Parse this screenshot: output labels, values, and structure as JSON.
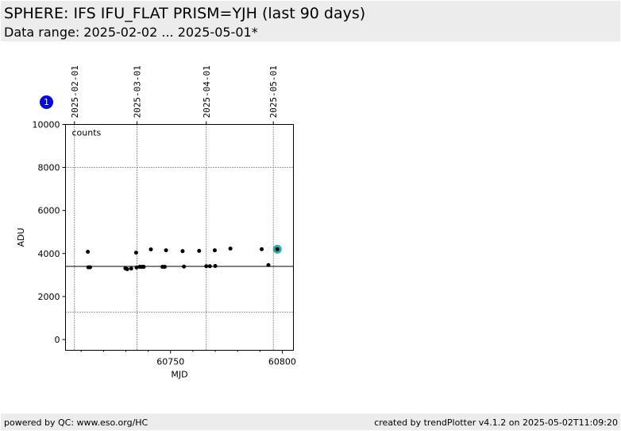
{
  "header": {
    "title": "SPHERE: IFS IFU_FLAT PRISM=YJH (last 90 days)",
    "subtitle": "Data range: 2025-02-02 ... 2025-05-01*"
  },
  "badge": {
    "label": "1"
  },
  "footer": {
    "left": "powered by QC: www.eso.org/HC",
    "right": "created by trendPlotter v4.1.2 on 2025-05-02T11:09:20"
  },
  "chart_data": {
    "type": "scatter",
    "xlabel": "MJD",
    "ylabel": "ADU",
    "annotation": "counts",
    "xlim": [
      60703,
      60805
    ],
    "ylim": [
      -500,
      10000
    ],
    "xticks": [
      60750,
      60800
    ],
    "yticks": [
      0,
      2000,
      4000,
      6000,
      8000,
      10000
    ],
    "date_ticks": [
      {
        "label": "2025-02-01",
        "mjd": 60707
      },
      {
        "label": "2025-03-01",
        "mjd": 60735
      },
      {
        "label": "2025-04-01",
        "mjd": 60766
      },
      {
        "label": "2025-05-01",
        "mjd": 60796
      }
    ],
    "reference_lines": [
      3400,
      1270
    ],
    "grid": true,
    "points": [
      {
        "x": 60713.0,
        "y": 4080
      },
      {
        "x": 60713.2,
        "y": 3360
      },
      {
        "x": 60714.0,
        "y": 3360
      },
      {
        "x": 60729.8,
        "y": 3310
      },
      {
        "x": 60730.6,
        "y": 3270
      },
      {
        "x": 60732.4,
        "y": 3300
      },
      {
        "x": 60734.6,
        "y": 4040
      },
      {
        "x": 60734.8,
        "y": 3350
      },
      {
        "x": 60736.2,
        "y": 3380
      },
      {
        "x": 60737.2,
        "y": 3380
      },
      {
        "x": 60738.0,
        "y": 3380
      },
      {
        "x": 60741.2,
        "y": 4190
      },
      {
        "x": 60746.4,
        "y": 3380
      },
      {
        "x": 60747.4,
        "y": 3380
      },
      {
        "x": 60748.0,
        "y": 4150
      },
      {
        "x": 60755.4,
        "y": 4110
      },
      {
        "x": 60756.0,
        "y": 3390
      },
      {
        "x": 60762.8,
        "y": 4120
      },
      {
        "x": 60766.0,
        "y": 3410
      },
      {
        "x": 60767.6,
        "y": 3410
      },
      {
        "x": 60769.8,
        "y": 4150
      },
      {
        "x": 60770.0,
        "y": 3420
      },
      {
        "x": 60776.8,
        "y": 4230
      },
      {
        "x": 60790.8,
        "y": 4200
      },
      {
        "x": 60793.8,
        "y": 3460
      },
      {
        "x": 60797.8,
        "y": 4200
      }
    ],
    "highlight": {
      "x": 60797.8,
      "y": 4200,
      "color": "#20b2aa"
    }
  }
}
